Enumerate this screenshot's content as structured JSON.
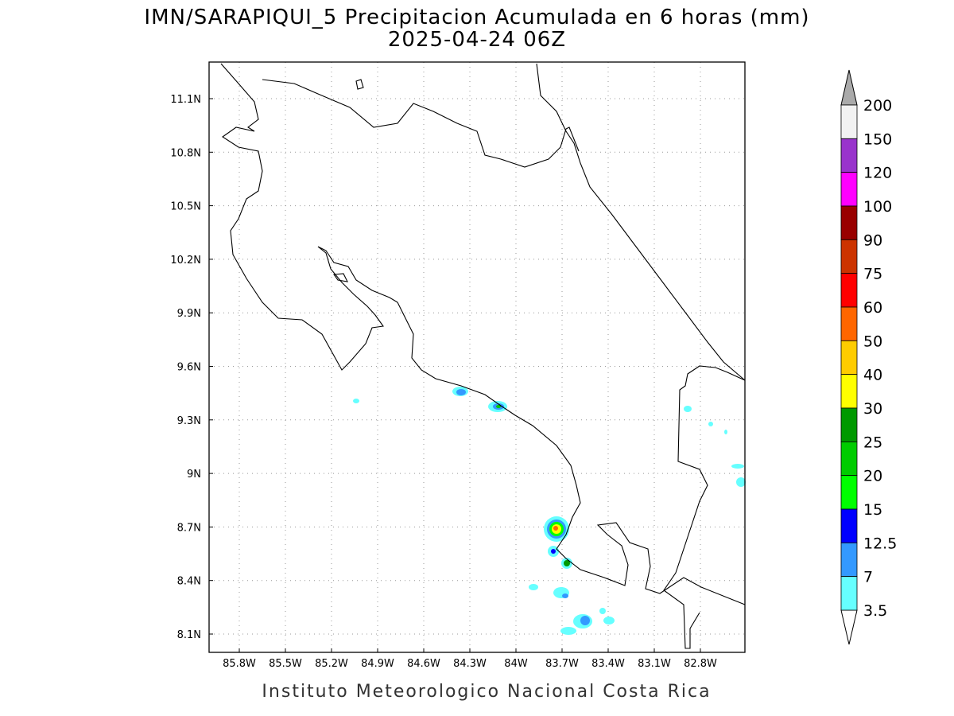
{
  "title": "IMN/SARAPIQUI_5 Precipitacion Acumulada en 6 horas (mm)",
  "subtitle": "2025-04-24 06Z",
  "footer": "Instituto Meteorologico Nacional Costa Rica",
  "map": {
    "x_labels": [
      "85.8W",
      "85.5W",
      "85.2W",
      "84.9W",
      "84.6W",
      "84.3W",
      "84W",
      "83.7W",
      "83.4W",
      "83.1W",
      "82.8W"
    ],
    "y_labels": [
      "11.1N",
      "10.8N",
      "10.5N",
      "10.2N",
      "9.9N",
      "9.6N",
      "9.3N",
      "9N",
      "8.7N",
      "8.4N",
      "8.1N"
    ]
  },
  "colorbar": {
    "labels": [
      200,
      150,
      120,
      100,
      90,
      75,
      60,
      50,
      40,
      30,
      25,
      20,
      15,
      12.5,
      7,
      3.5
    ],
    "colors": [
      "#f2f2f2",
      "#9933cc",
      "#ff00ff",
      "#990000",
      "#cc3300",
      "#ff0000",
      "#ff6600",
      "#ffcc00",
      "#ffff00",
      "#009900",
      "#00cc00",
      "#00ff00",
      "#0000ff",
      "#3399ff",
      "#66ffff"
    ],
    "over_color": "#aaaaaa",
    "under_color": "#ffffff"
  }
}
